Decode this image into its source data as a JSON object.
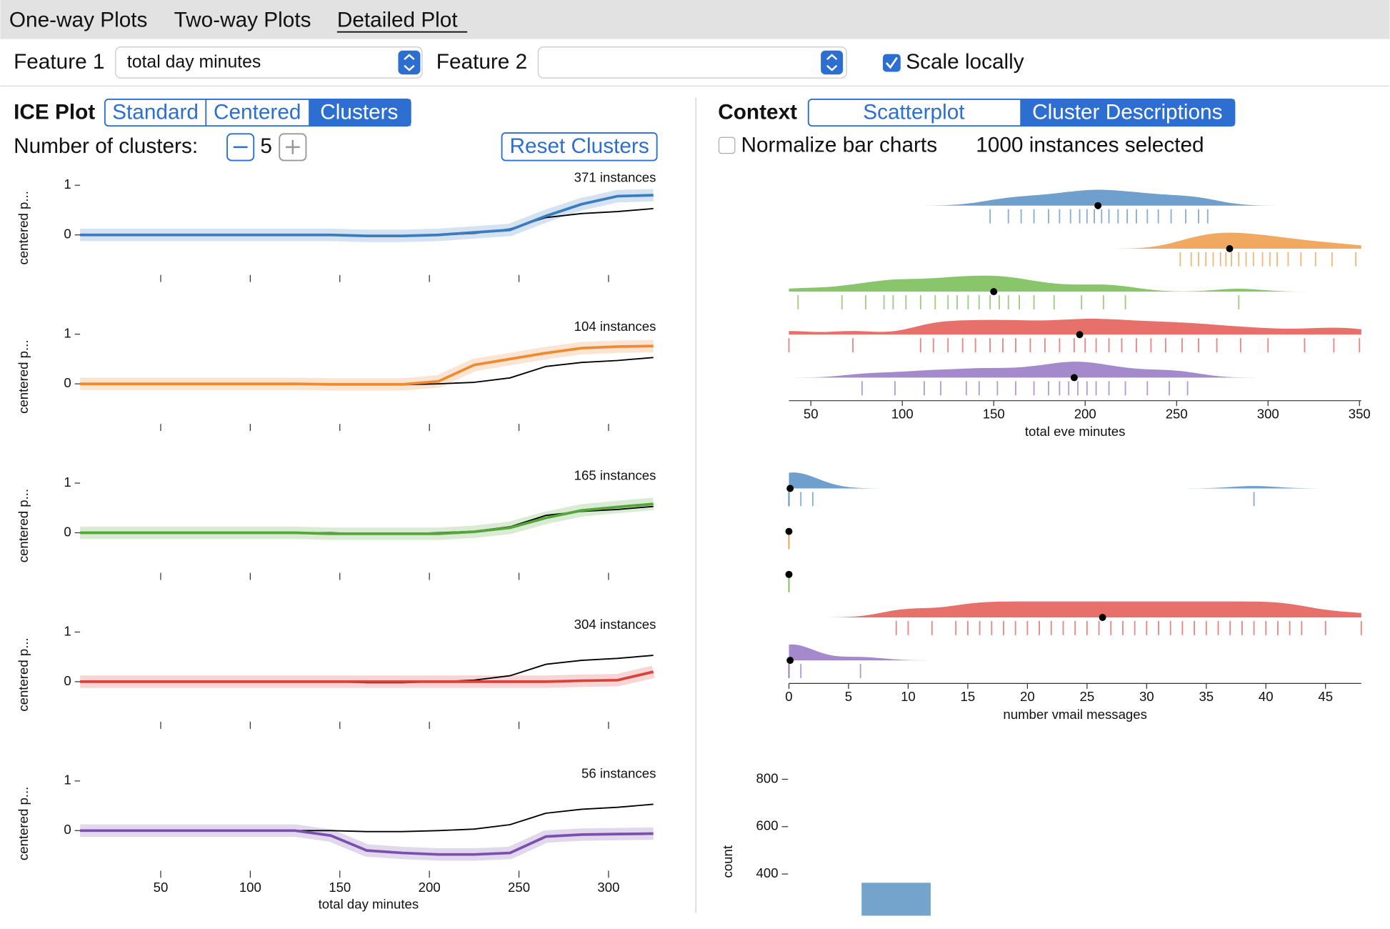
{
  "tabs": [
    "One-way Plots",
    "Two-way Plots",
    "Detailed Plot"
  ],
  "feature1": {
    "label": "Feature 1",
    "value": "total day minutes"
  },
  "feature2": {
    "label": "Feature 2"
  },
  "scale_locally": "Scale locally",
  "ice": {
    "title": "ICE Plot",
    "modes": [
      "Standard",
      "Centered",
      "Clusters"
    ],
    "clusters_label": "Number of clusters:",
    "clusters": 5,
    "reset": "Reset Clusters"
  },
  "context": {
    "title": "Context",
    "modes": [
      "Scatterplot",
      "Cluster Descriptions"
    ],
    "normalize": "Normalize bar charts",
    "selected": "1000 instances selected"
  },
  "chart_data": [
    {
      "type": "line",
      "annotation": "371 instances",
      "ylabel": "centered p...",
      "x": [
        5,
        25,
        45,
        65,
        85,
        105,
        125,
        145,
        165,
        185,
        205,
        225,
        245,
        265,
        285,
        305,
        325
      ],
      "xlim": [
        5,
        327
      ],
      "xticks": [
        50,
        100,
        150,
        200,
        250,
        300
      ],
      "ylim": [
        -0.7,
        1.1
      ],
      "yticks": [
        0,
        1
      ],
      "series": [
        {
          "color": "#3a7dbf",
          "values": [
            0,
            0,
            0,
            0,
            0,
            0,
            0,
            0,
            -0.02,
            -0.02,
            0,
            0.05,
            0.1,
            0.38,
            0.62,
            0.78,
            0.8
          ]
        },
        {
          "color": "#000000",
          "values": [
            0,
            0,
            0,
            0,
            0,
            0,
            0,
            0,
            -0.02,
            -0.02,
            0,
            0.03,
            0.12,
            0.35,
            0.43,
            0.47,
            0.53
          ]
        }
      ]
    },
    {
      "type": "line",
      "annotation": "104 instances",
      "ylabel": "centered p...",
      "x": [
        5,
        25,
        45,
        65,
        85,
        105,
        125,
        145,
        165,
        185,
        205,
        225,
        245,
        265,
        285,
        305,
        325
      ],
      "xlim": [
        5,
        327
      ],
      "xticks": [
        50,
        100,
        150,
        200,
        250,
        300
      ],
      "ylim": [
        -0.7,
        1.1
      ],
      "yticks": [
        0,
        1
      ],
      "series": [
        {
          "color": "#ee8a30",
          "values": [
            0,
            0,
            0,
            0,
            0,
            0,
            0,
            -0.01,
            -0.01,
            -0.01,
            0.05,
            0.38,
            0.5,
            0.62,
            0.72,
            0.75,
            0.76
          ]
        },
        {
          "color": "#000000",
          "values": [
            0,
            0,
            0,
            0,
            0,
            0,
            0,
            0,
            -0.02,
            -0.02,
            0,
            0.03,
            0.12,
            0.35,
            0.43,
            0.47,
            0.53
          ]
        }
      ]
    },
    {
      "type": "line",
      "annotation": "165 instances",
      "ylabel": "centered p...",
      "x": [
        5,
        25,
        45,
        65,
        85,
        105,
        125,
        145,
        165,
        185,
        205,
        225,
        245,
        265,
        285,
        305,
        325
      ],
      "xlim": [
        5,
        327
      ],
      "xticks": [
        50,
        100,
        150,
        200,
        250,
        300
      ],
      "ylim": [
        -0.7,
        1.1
      ],
      "yticks": [
        0,
        1
      ],
      "series": [
        {
          "color": "#55a63a",
          "values": [
            0,
            0,
            0,
            0,
            0,
            0,
            0,
            -0.02,
            -0.02,
            -0.02,
            -0.02,
            0.02,
            0.1,
            0.3,
            0.45,
            0.52,
            0.58
          ]
        },
        {
          "color": "#000000",
          "values": [
            0,
            0,
            0,
            0,
            0,
            0,
            0,
            0,
            -0.02,
            -0.02,
            0,
            0.03,
            0.12,
            0.35,
            0.43,
            0.47,
            0.53
          ]
        }
      ]
    },
    {
      "type": "line",
      "annotation": "304 instances",
      "ylabel": "centered p...",
      "x": [
        5,
        25,
        45,
        65,
        85,
        105,
        125,
        145,
        165,
        185,
        205,
        225,
        245,
        265,
        285,
        305,
        325
      ],
      "xlim": [
        5,
        327
      ],
      "xticks": [
        50,
        100,
        150,
        200,
        250,
        300
      ],
      "ylim": [
        -0.7,
        1.1
      ],
      "yticks": [
        0,
        1
      ],
      "series": [
        {
          "color": "#d9423a",
          "values": [
            0,
            0,
            0,
            0,
            0,
            0,
            0,
            0,
            0,
            0,
            0,
            0,
            0,
            0,
            0.02,
            0.03,
            0.2
          ]
        },
        {
          "color": "#000000",
          "values": [
            0,
            0,
            0,
            0,
            0,
            0,
            0,
            0,
            -0.02,
            -0.02,
            0,
            0.03,
            0.12,
            0.35,
            0.43,
            0.47,
            0.53
          ]
        }
      ]
    },
    {
      "type": "line",
      "annotation": "56 instances",
      "ylabel": "centered p...",
      "xlabel": "total day minutes",
      "x": [
        5,
        25,
        45,
        65,
        85,
        105,
        125,
        145,
        165,
        185,
        205,
        225,
        245,
        265,
        285,
        305,
        325
      ],
      "xlim": [
        5,
        327
      ],
      "xticks": [
        50,
        100,
        150,
        200,
        250,
        300
      ],
      "ylim": [
        -0.7,
        1.1
      ],
      "yticks": [
        0,
        1
      ],
      "series": [
        {
          "color": "#7b4fae",
          "values": [
            0,
            0,
            0,
            0,
            0,
            0,
            0,
            -0.1,
            -0.4,
            -0.45,
            -0.48,
            -0.48,
            -0.45,
            -0.12,
            -0.08,
            -0.07,
            -0.06
          ]
        },
        {
          "color": "#000000",
          "values": [
            0,
            0,
            0,
            0,
            0,
            0,
            0,
            0,
            -0.02,
            -0.02,
            0,
            0.03,
            0.12,
            0.35,
            0.43,
            0.47,
            0.53
          ]
        }
      ]
    },
    {
      "type": "rug",
      "xlabel": "total eve minutes",
      "xlim": [
        38,
        351
      ],
      "xticks": [
        50,
        100,
        150,
        200,
        250,
        300,
        350
      ],
      "series": [
        {
          "color": "#5f95c7",
          "mean": 207,
          "values": [
            148,
            158,
            165,
            172,
            180,
            186,
            192,
            197,
            201,
            205,
            209,
            213,
            218,
            223,
            228,
            234,
            240,
            247,
            255,
            262,
            267
          ]
        },
        {
          "color": "#f0a050",
          "mean": 279,
          "values": [
            252,
            258,
            262,
            266,
            270,
            274,
            277,
            280,
            284,
            288,
            292,
            297,
            301,
            305,
            311,
            318,
            326,
            335,
            348
          ]
        },
        {
          "color": "#7cbf5a",
          "mean": 150,
          "values": [
            43,
            67,
            80,
            90,
            95,
            102,
            110,
            118,
            125,
            130,
            136,
            142,
            148,
            153,
            158,
            164,
            172,
            183,
            198,
            210,
            222,
            284
          ]
        },
        {
          "color": "#e4605a",
          "mean": 197,
          "values": [
            38,
            73,
            110,
            117,
            125,
            133,
            140,
            148,
            155,
            162,
            170,
            178,
            186,
            194,
            200,
            206,
            213,
            220,
            228,
            236,
            244,
            253,
            262,
            272,
            285,
            300,
            320,
            336,
            350
          ]
        },
        {
          "color": "#9a7cc6",
          "mean": 194,
          "values": [
            78,
            96,
            112,
            121,
            135,
            142,
            152,
            162,
            172,
            180,
            186,
            191,
            196,
            201,
            206,
            213,
            222,
            234,
            246,
            256
          ]
        }
      ]
    },
    {
      "type": "rug",
      "xlabel": "number vmail messages",
      "xlim": [
        0,
        48
      ],
      "xticks": [
        0,
        5,
        10,
        15,
        20,
        25,
        30,
        35,
        40,
        45
      ],
      "series": [
        {
          "color": "#5f95c7",
          "mean": 0.1,
          "values": [
            0,
            0,
            0,
            0,
            0,
            1,
            2,
            39
          ]
        },
        {
          "color": "#f0a050",
          "mean": 0,
          "values": [
            0,
            0,
            0
          ]
        },
        {
          "color": "#7cbf5a",
          "mean": 0,
          "values": [
            0,
            0,
            0
          ]
        },
        {
          "color": "#e4605a",
          "mean": 26.3,
          "values": [
            9,
            10,
            12,
            14,
            15,
            16,
            17,
            18,
            19,
            20,
            21,
            22,
            23,
            24,
            25,
            26,
            27,
            28,
            29,
            30,
            31,
            32,
            33,
            34,
            35,
            36,
            37,
            38,
            39,
            40,
            41,
            42,
            43,
            45,
            48
          ]
        },
        {
          "color": "#9a7cc6",
          "mean": 0.1,
          "values": [
            0,
            0,
            0,
            0,
            1,
            6
          ]
        }
      ]
    },
    {
      "type": "bar",
      "ylabel": "count",
      "ylim": [
        224,
        834
      ],
      "yticks": [
        400,
        600,
        800
      ],
      "values": [
        363
      ],
      "color": "#74a3cb"
    }
  ]
}
